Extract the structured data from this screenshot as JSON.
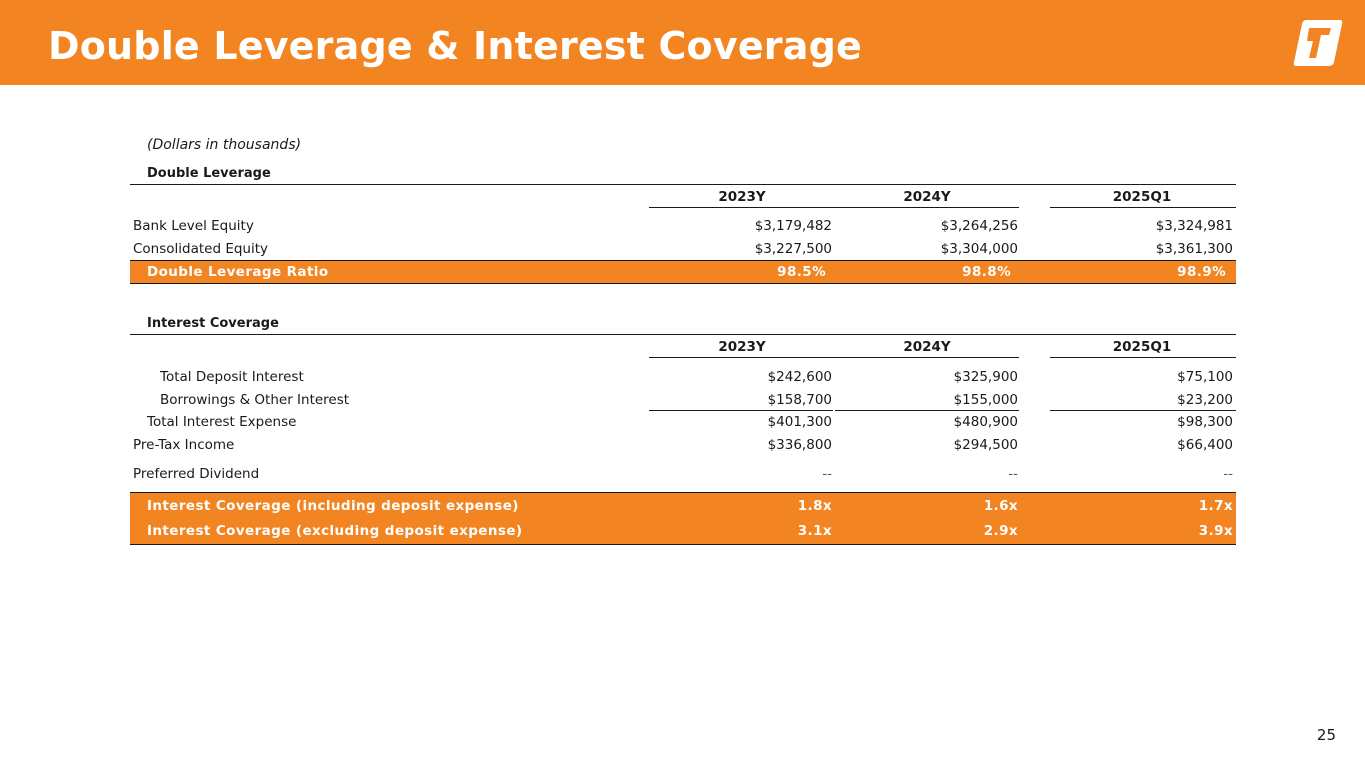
{
  "title": "Double Leverage & Interest Coverage",
  "note": "(Dollars in thousands)",
  "page_number": "25",
  "colors": {
    "accent": "#f28422",
    "text": "#1a1a1a",
    "white": "#ffffff"
  },
  "double_leverage": {
    "title": "Double Leverage",
    "columns": [
      "2023Y",
      "2024Y",
      "2025Q1"
    ],
    "rows": [
      {
        "label": "Bank Level Equity",
        "values": [
          "$3,179,482",
          "$3,264,256",
          "$3,324,981"
        ]
      },
      {
        "label": "Consolidated Equity",
        "values": [
          "$3,227,500",
          "$3,304,000",
          "$3,361,300"
        ]
      }
    ],
    "ratio": {
      "label": "Double Leverage Ratio",
      "values": [
        "98.5%",
        "98.8%",
        "98.9%"
      ]
    }
  },
  "interest_coverage": {
    "title": "Interest Coverage",
    "columns": [
      "2023Y",
      "2024Y",
      "2025Q1"
    ],
    "rows": [
      {
        "label": "Total Deposit Interest",
        "values": [
          "$242,600",
          "$325,900",
          "$75,100"
        ]
      },
      {
        "label": "Borrowings & Other Interest",
        "values": [
          "$158,700",
          "$155,000",
          "$23,200"
        ]
      },
      {
        "label": "Total Interest Expense",
        "values": [
          "$401,300",
          "$480,900",
          "$98,300"
        ]
      },
      {
        "label": "Pre-Tax Income",
        "values": [
          "$336,800",
          "$294,500",
          "$66,400"
        ]
      },
      {
        "label": "Preferred Dividend",
        "values": [
          "--",
          "--",
          "--"
        ]
      }
    ],
    "ratios": [
      {
        "label": "Interest Coverage (including deposit expense)",
        "values": [
          "1.8x",
          "1.6x",
          "1.7x"
        ]
      },
      {
        "label": "Interest Coverage (excluding deposit expense)",
        "values": [
          "3.1x",
          "2.9x",
          "3.9x"
        ]
      }
    ]
  }
}
